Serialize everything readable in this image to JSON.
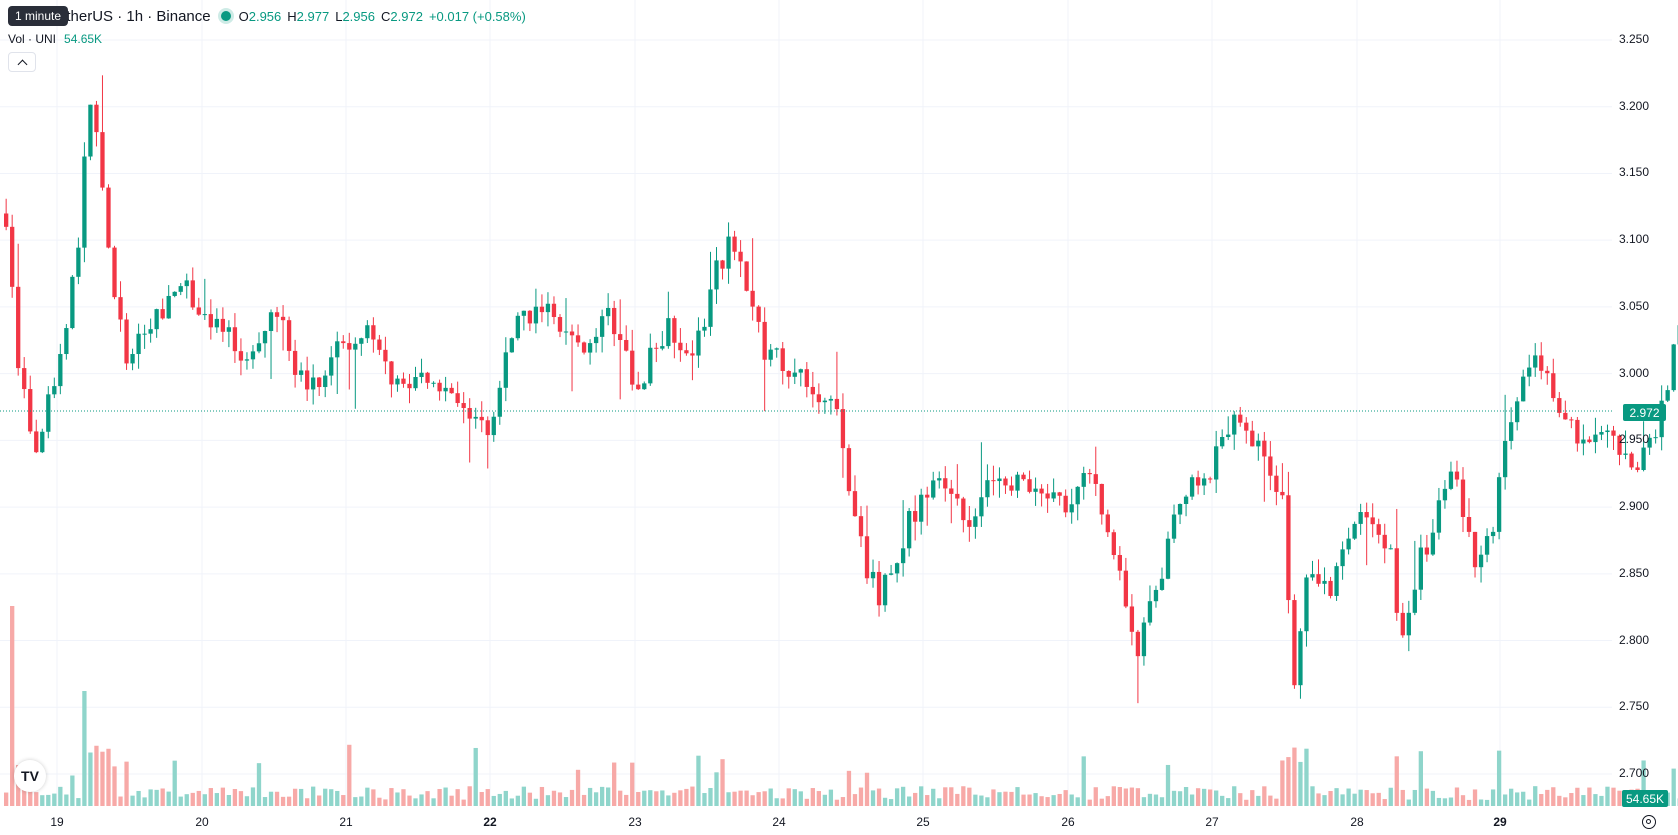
{
  "header": {
    "interval_tooltip": "1 minute",
    "symbol_title": "etherUS · 1h · Binance",
    "ohlc": {
      "o_label": "O",
      "o_value": "2.956",
      "h_label": "H",
      "h_value": "2.977",
      "l_label": "L",
      "l_value": "2.956",
      "c_label": "C",
      "c_value": "2.972",
      "change": "+0.017 (+0.58%)"
    },
    "volume": {
      "label": "Vol · UNI",
      "value": "54.65K"
    }
  },
  "price_axis": {
    "ticks": [
      "3.250",
      "3.200",
      "3.150",
      "3.100",
      "3.050",
      "3.000",
      "2.950",
      "2.900",
      "2.850",
      "2.800",
      "2.750",
      "2.700"
    ],
    "last_price_label": "2.972",
    "volume_label": "54.65K"
  },
  "time_axis": {
    "ticks": [
      "19",
      "20",
      "21",
      "22",
      "23",
      "24",
      "25",
      "26",
      "27",
      "28",
      "29"
    ],
    "bold_ticks": [
      "22",
      "29"
    ]
  },
  "colors": {
    "up": "#089981",
    "down": "#f23645",
    "up_vol": "#8fd5cb",
    "down_vol": "#f7a9a7",
    "grid": "#f0f3fa"
  },
  "logo": {
    "text": "TV"
  },
  "chart_data": {
    "type": "candlestick",
    "ylim": [
      2.675,
      3.26
    ],
    "last_price": 2.972,
    "anchors": [
      [
        0,
        3.12
      ],
      [
        2,
        3.0
      ],
      [
        5,
        2.94
      ],
      [
        10,
        3.03
      ],
      [
        12,
        3.1
      ],
      [
        14,
        3.21
      ],
      [
        17,
        3.1
      ],
      [
        20,
        3.0
      ],
      [
        24,
        3.04
      ],
      [
        30,
        3.06
      ],
      [
        34,
        3.04
      ],
      [
        40,
        3.01
      ],
      [
        45,
        3.05
      ],
      [
        50,
        2.98
      ],
      [
        55,
        3.02
      ],
      [
        60,
        3.03
      ],
      [
        65,
        2.99
      ],
      [
        70,
        3.0
      ],
      [
        75,
        2.97
      ],
      [
        80,
        2.96
      ],
      [
        85,
        3.04
      ],
      [
        90,
        3.05
      ],
      [
        95,
        3.02
      ],
      [
        100,
        3.04
      ],
      [
        105,
        2.99
      ],
      [
        110,
        3.04
      ],
      [
        114,
        3.01
      ],
      [
        118,
        3.08
      ],
      [
        121,
        3.1
      ],
      [
        126,
        3.02
      ],
      [
        133,
        2.99
      ],
      [
        138,
        2.97
      ],
      [
        142,
        2.87
      ],
      [
        145,
        2.83
      ],
      [
        150,
        2.89
      ],
      [
        155,
        2.92
      ],
      [
        160,
        2.89
      ],
      [
        165,
        2.93
      ],
      [
        170,
        2.91
      ],
      [
        175,
        2.9
      ],
      [
        180,
        2.93
      ],
      [
        185,
        2.85
      ],
      [
        188,
        2.79
      ],
      [
        192,
        2.85
      ],
      [
        195,
        2.91
      ],
      [
        200,
        2.93
      ],
      [
        205,
        2.97
      ],
      [
        210,
        2.93
      ],
      [
        212,
        2.9
      ],
      [
        214,
        2.76
      ],
      [
        216,
        2.85
      ],
      [
        220,
        2.84
      ],
      [
        225,
        2.89
      ],
      [
        230,
        2.86
      ],
      [
        232,
        2.8
      ],
      [
        235,
        2.86
      ],
      [
        240,
        2.93
      ],
      [
        244,
        2.86
      ],
      [
        247,
        2.89
      ],
      [
        250,
        2.97
      ],
      [
        254,
        3.01
      ],
      [
        258,
        2.98
      ],
      [
        262,
        2.95
      ],
      [
        266,
        2.95
      ],
      [
        270,
        2.93
      ],
      [
        274,
        2.96
      ],
      [
        278,
        3.03
      ],
      [
        281,
        2.98
      ],
      [
        285,
        2.95
      ],
      [
        290,
        2.92
      ],
      [
        295,
        2.91
      ],
      [
        300,
        2.93
      ],
      [
        305,
        2.92
      ],
      [
        310,
        2.89
      ],
      [
        315,
        2.94
      ],
      [
        320,
        2.88
      ],
      [
        324,
        2.94
      ],
      [
        327,
        2.95
      ],
      [
        330,
        2.96
      ],
      [
        333,
        2.972
      ]
    ]
  }
}
